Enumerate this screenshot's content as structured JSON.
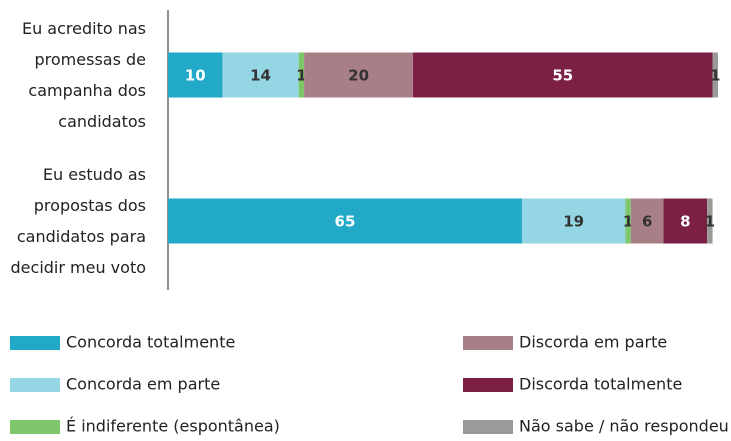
{
  "chart_data": {
    "type": "stacked-bar-horizontal",
    "categories": [
      "Eu acredito nas promessas de campanha dos candidatos",
      "Eu estudo as propostas dos candidatos para decidir meu voto"
    ],
    "series": [
      {
        "name": "Concorda totalmente",
        "color": "#22a9c7",
        "values": [
          10,
          65
        ]
      },
      {
        "name": "Concorda em parte",
        "color": "#94d6e4",
        "values": [
          14,
          19
        ]
      },
      {
        "name": "É indiferente (espontânea)",
        "color": "#7dc66a",
        "values": [
          1,
          1
        ]
      },
      {
        "name": "Discorda em parte",
        "color": "#a87f86",
        "values": [
          20,
          6
        ]
      },
      {
        "name": "Discorda totalmente",
        "color": "#7b1f45",
        "values": [
          55,
          8
        ]
      },
      {
        "name": "Não sabe / não respondeu",
        "color": "#9a9a9a",
        "values": [
          1,
          1
        ]
      }
    ]
  }
}
